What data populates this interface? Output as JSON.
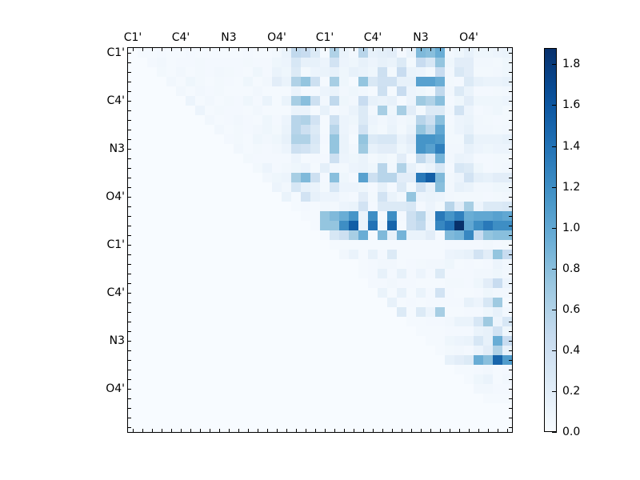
{
  "chart_data": {
    "type": "heatmap",
    "title": "",
    "xlabel": "",
    "ylabel": "",
    "grid_size": [
      40,
      40
    ],
    "x_tick_labels": [
      {
        "index": 0,
        "label": "C1'"
      },
      {
        "index": 5,
        "label": "C4'"
      },
      {
        "index": 10,
        "label": "N3"
      },
      {
        "index": 15,
        "label": "O4'"
      },
      {
        "index": 20,
        "label": "C1'"
      },
      {
        "index": 25,
        "label": "C4'"
      },
      {
        "index": 30,
        "label": "N3"
      },
      {
        "index": 35,
        "label": "O4'"
      }
    ],
    "y_tick_labels": [
      {
        "index": 0,
        "label": "C1'"
      },
      {
        "index": 5,
        "label": "C4'"
      },
      {
        "index": 10,
        "label": "N3"
      },
      {
        "index": 15,
        "label": "O4'"
      },
      {
        "index": 20,
        "label": "C1'"
      },
      {
        "index": 25,
        "label": "C4'"
      },
      {
        "index": 30,
        "label": "N3"
      },
      {
        "index": 35,
        "label": "O4'"
      }
    ],
    "x_axis_position": "top",
    "colormap": "Blues",
    "vmin": 0.0,
    "vmax": 1.88,
    "colorbar": {
      "ticks": [
        0.0,
        0.2,
        0.4,
        0.6,
        0.8,
        1.0,
        1.2,
        1.4,
        1.6,
        1.8
      ],
      "tick_labels": [
        "0.0",
        "0.2",
        "0.4",
        "0.6",
        "0.8",
        "1.0",
        "1.2",
        "1.4",
        "1.6",
        "1.8"
      ]
    },
    "background_value": 0.0,
    "note": "Upper-triangular matrix; values estimated from color. Cells not listed are ~0.",
    "rows": {
      "0": {
        "1": 0.03,
        "2": 0.03,
        "3": 0.04,
        "4": 0.03,
        "5": 0.03,
        "6": 0.04,
        "7": 0.03,
        "8": 0.03,
        "9": 0.03,
        "10": 0.03,
        "11": 0.03,
        "12": 0.04,
        "13": 0.03,
        "14": 0.03,
        "15": 0.05,
        "16": 0.12,
        "17": 0.5,
        "18": 0.45,
        "19": 0.25,
        "20": 0.03,
        "21": 0.6,
        "22": 0.12,
        "23": 0.06,
        "24": 0.55,
        "25": 0.15,
        "26": 0.18,
        "27": 0.2,
        "28": 0.04,
        "29": 0.12,
        "30": 0.85,
        "31": 0.8,
        "32": 0.95,
        "33": 0.06,
        "34": 0.08,
        "35": 0.15,
        "36": 0.08,
        "37": 0.08,
        "38": 0.1,
        "39": 0.12
      },
      "1": {
        "2": 0.04,
        "3": 0.06,
        "4": 0.03,
        "5": 0.04,
        "6": 0.04,
        "7": 0.05,
        "8": 0.04,
        "9": 0.04,
        "10": 0.04,
        "11": 0.04,
        "12": 0.05,
        "13": 0.04,
        "14": 0.04,
        "15": 0.08,
        "16": 0.1,
        "17": 0.3,
        "18": 0.15,
        "19": 0.15,
        "20": 0.1,
        "21": 0.35,
        "22": 0.1,
        "23": 0.08,
        "24": 0.15,
        "25": 0.1,
        "26": 0.15,
        "27": 0.12,
        "28": 0.25,
        "29": 0.05,
        "30": 0.45,
        "31": 0.3,
        "32": 0.75,
        "33": 0.08,
        "34": 0.2,
        "35": 0.2,
        "36": 0.06,
        "37": 0.06,
        "38": 0.05,
        "39": 0.08
      },
      "2": {
        "3": 0.05,
        "4": 0.03,
        "5": 0.06,
        "6": 0.03,
        "7": 0.05,
        "8": 0.04,
        "9": 0.06,
        "10": 0.05,
        "11": 0.04,
        "12": 0.03,
        "13": 0.08,
        "14": 0.04,
        "15": 0.12,
        "16": 0.08,
        "17": 0.25,
        "18": 0.05,
        "19": 0.1,
        "20": 0.12,
        "21": 0.15,
        "22": 0.08,
        "23": 0.15,
        "24": 0.12,
        "25": 0.08,
        "26": 0.4,
        "27": 0.05,
        "28": 0.45,
        "29": 0.12,
        "30": 0.1,
        "31": 0.05,
        "32": 0.45,
        "33": 0.06,
        "34": 0.28,
        "35": 0.2,
        "36": 0.05,
        "37": 0.05,
        "38": 0.06,
        "39": 0.08
      },
      "3": {
        "4": 0.06,
        "5": 0.03,
        "6": 0.08,
        "7": 0.05,
        "8": 0.03,
        "9": 0.05,
        "10": 0.04,
        "11": 0.03,
        "12": 0.08,
        "13": 0.03,
        "14": 0.06,
        "15": 0.2,
        "16": 0.12,
        "17": 0.6,
        "18": 0.75,
        "19": 0.4,
        "20": 0.03,
        "21": 0.65,
        "22": 0.08,
        "23": 0.03,
        "24": 0.75,
        "25": 0.28,
        "26": 0.38,
        "27": 0.38,
        "28": 0.15,
        "29": 0.15,
        "30": 1.05,
        "31": 1.05,
        "32": 0.95,
        "33": 0.05,
        "34": 0.04,
        "35": 0.25,
        "36": 0.15,
        "37": 0.12,
        "38": 0.12,
        "39": 0.15
      },
      "4": {
        "5": 0.06,
        "6": 0.03,
        "7": 0.06,
        "8": 0.04,
        "9": 0.05,
        "10": 0.03,
        "11": 0.03,
        "12": 0.03,
        "13": 0.06,
        "14": 0.03,
        "15": 0.03,
        "16": 0.03,
        "17": 0.12,
        "18": 0.04,
        "19": 0.04,
        "20": 0.1,
        "21": 0.12,
        "22": 0.06,
        "23": 0.08,
        "24": 0.06,
        "25": 0.03,
        "26": 0.4,
        "27": 0.03,
        "28": 0.45,
        "29": 0.1,
        "30": 0.08,
        "31": 0.05,
        "32": 0.5,
        "33": 0.06,
        "34": 0.25,
        "35": 0.12,
        "36": 0.04,
        "37": 0.04,
        "38": 0.05,
        "39": 0.06
      },
      "5": {
        "6": 0.1,
        "7": 0.03,
        "8": 0.06,
        "9": 0.03,
        "10": 0.05,
        "11": 0.04,
        "12": 0.08,
        "13": 0.04,
        "14": 0.12,
        "15": 0.03,
        "16": 0.12,
        "17": 0.65,
        "18": 0.8,
        "19": 0.4,
        "20": 0.06,
        "21": 0.5,
        "22": 0.08,
        "23": 0.06,
        "24": 0.45,
        "25": 0.15,
        "26": 0.12,
        "27": 0.15,
        "28": 0.03,
        "29": 0.1,
        "30": 0.7,
        "31": 0.6,
        "32": 0.8,
        "33": 0.04,
        "34": 0.08,
        "35": 0.2,
        "36": 0.08,
        "37": 0.08,
        "38": 0.08,
        "39": 0.1
      },
      "6": {
        "7": 0.1,
        "8": 0.03,
        "9": 0.05,
        "10": 0.04,
        "11": 0.04,
        "12": 0.03,
        "13": 0.06,
        "14": 0.03,
        "15": 0.03,
        "16": 0.03,
        "17": 0.12,
        "18": 0.12,
        "19": 0.03,
        "20": 0.15,
        "21": 0.04,
        "22": 0.06,
        "23": 0.12,
        "24": 0.25,
        "25": 0.06,
        "26": 0.65,
        "27": 0.08,
        "28": 0.65,
        "29": 0.2,
        "30": 0.05,
        "31": 0.25,
        "32": 0.25,
        "33": 0.06,
        "34": 0.35,
        "35": 0.1,
        "36": 0.04,
        "37": 0.06,
        "38": 0.08,
        "39": 0.05
      },
      "7": {
        "8": 0.06,
        "9": 0.03,
        "10": 0.04,
        "11": 0.06,
        "12": 0.04,
        "13": 0.03,
        "14": 0.08,
        "15": 0.04,
        "16": 0.1,
        "17": 0.55,
        "18": 0.6,
        "19": 0.35,
        "20": 0.03,
        "21": 0.4,
        "22": 0.1,
        "23": 0.08,
        "24": 0.25,
        "25": 0.1,
        "26": 0.06,
        "27": 0.1,
        "28": 0.06,
        "29": 0.08,
        "30": 0.55,
        "31": 0.4,
        "32": 0.8,
        "33": 0.04,
        "34": 0.1,
        "35": 0.12,
        "36": 0.06,
        "37": 0.05,
        "38": 0.04,
        "39": 0.05
      },
      "8": {
        "9": 0.06,
        "10": 0.03,
        "11": 0.05,
        "12": 0.04,
        "13": 0.06,
        "14": 0.08,
        "15": 0.05,
        "16": 0.12,
        "17": 0.55,
        "18": 0.4,
        "19": 0.25,
        "20": 0.03,
        "21": 0.55,
        "22": 0.1,
        "23": 0.06,
        "24": 0.35,
        "25": 0.08,
        "26": 0.05,
        "27": 0.12,
        "28": 0.05,
        "29": 0.12,
        "30": 0.75,
        "31": 0.55,
        "32": 1.0,
        "33": 0.05,
        "34": 0.1,
        "35": 0.15,
        "36": 0.06,
        "37": 0.06,
        "38": 0.05,
        "39": 0.06
      },
      "9": {
        "10": 0.04,
        "11": 0.05,
        "12": 0.03,
        "13": 0.08,
        "14": 0.06,
        "15": 0.08,
        "16": 0.15,
        "17": 0.6,
        "18": 0.6,
        "19": 0.3,
        "20": 0.04,
        "21": 0.75,
        "22": 0.12,
        "23": 0.03,
        "24": 0.75,
        "25": 0.25,
        "26": 0.3,
        "27": 0.3,
        "28": 0.12,
        "29": 0.2,
        "30": 1.15,
        "31": 1.15,
        "32": 1.1,
        "33": 0.05,
        "34": 0.05,
        "35": 0.25,
        "36": 0.12,
        "37": 0.12,
        "38": 0.12,
        "39": 0.15
      },
      "10": {
        "11": 0.06,
        "12": 0.03,
        "13": 0.05,
        "14": 0.04,
        "15": 0.06,
        "16": 0.1,
        "17": 0.4,
        "18": 0.35,
        "19": 0.25,
        "20": 0.03,
        "21": 0.75,
        "22": 0.12,
        "23": 0.06,
        "24": 0.7,
        "25": 0.15,
        "26": 0.2,
        "27": 0.2,
        "28": 0.08,
        "29": 0.15,
        "30": 1.15,
        "31": 1.05,
        "32": 1.3,
        "33": 0.06,
        "34": 0.06,
        "35": 0.15,
        "36": 0.1,
        "37": 0.08,
        "38": 0.1,
        "39": 0.1
      },
      "11": {
        "12": 0.05,
        "13": 0.04,
        "14": 0.04,
        "15": 0.04,
        "16": 0.04,
        "17": 0.1,
        "18": 0.03,
        "19": 0.04,
        "20": 0.04,
        "21": 0.4,
        "22": 0.1,
        "23": 0.08,
        "24": 0.12,
        "25": 0.05,
        "26": 0.08,
        "27": 0.05,
        "28": 0.2,
        "29": 0.03,
        "30": 0.5,
        "31": 0.25,
        "32": 0.9,
        "33": 0.06,
        "34": 0.12,
        "35": 0.1,
        "36": 0.04,
        "37": 0.04,
        "38": 0.05,
        "39": 0.05
      },
      "12": {
        "13": 0.05,
        "14": 0.1,
        "15": 0.04,
        "16": 0.06,
        "17": 0.08,
        "18": 0.1,
        "19": 0.03,
        "20": 0.18,
        "21": 0.06,
        "22": 0.05,
        "23": 0.1,
        "24": 0.12,
        "25": 0.08,
        "26": 0.55,
        "27": 0.06,
        "28": 0.6,
        "29": 0.15,
        "30": 0.06,
        "31": 0.12,
        "32": 0.3,
        "33": 0.04,
        "34": 0.3,
        "35": 0.25,
        "36": 0.08,
        "37": 0.04,
        "38": 0.05,
        "39": 0.06
      },
      "13": {
        "14": 0.06,
        "15": 0.08,
        "16": 0.1,
        "17": 0.65,
        "18": 0.85,
        "19": 0.4,
        "20": 0.04,
        "21": 0.8,
        "22": 0.08,
        "23": 0.04,
        "24": 1.05,
        "25": 0.4,
        "26": 0.55,
        "27": 0.55,
        "28": 0.2,
        "29": 0.2,
        "30": 1.35,
        "31": 1.55,
        "32": 0.85,
        "33": 0.06,
        "34": 0.1,
        "35": 0.35,
        "36": 0.18,
        "37": 0.15,
        "38": 0.2,
        "39": 0.2
      },
      "14": {
        "15": 0.1,
        "16": 0.06,
        "17": 0.3,
        "18": 0.15,
        "19": 0.12,
        "20": 0.05,
        "21": 0.3,
        "22": 0.1,
        "23": 0.1,
        "24": 0.08,
        "25": 0.04,
        "26": 0.15,
        "27": 0.04,
        "28": 0.25,
        "29": 0.05,
        "30": 0.35,
        "31": 0.15,
        "32": 0.8,
        "33": 0.06,
        "34": 0.15,
        "35": 0.12,
        "36": 0.06,
        "37": 0.06,
        "38": 0.08,
        "39": 0.08
      },
      "15": {
        "16": 0.12,
        "17": 0.03,
        "18": 0.35,
        "19": 0.15,
        "20": 0.1,
        "21": 0.1,
        "22": 0.06,
        "23": 0.04,
        "24": 0.2,
        "25": 0.05,
        "26": 0.35,
        "27": 0.12,
        "28": 0.06,
        "29": 0.75,
        "30": 0.1,
        "31": 0.12,
        "32": 0.1,
        "33": 0.06,
        "34": 0.05,
        "35": 0.05,
        "36": 0.05,
        "37": 0.04,
        "38": 0.05,
        "39": 0.06
      },
      "16": {
        "17": 0.03,
        "18": 0.04,
        "19": 0.03,
        "20": 0.06,
        "21": 0.05,
        "22": 0.1,
        "23": 0.12,
        "24": 0.35,
        "25": 0.04,
        "26": 0.25,
        "27": 0.25,
        "28": 0.25,
        "29": 0.3,
        "30": 0.04,
        "31": 0.1,
        "32": 0.05,
        "33": 0.55,
        "34": 0.2,
        "35": 0.65,
        "36": 0.1,
        "37": 0.25,
        "38": 0.25,
        "39": 0.28
      },
      "17": {
        "18": 0.03,
        "19": 0.03,
        "20": 0.75,
        "21": 0.85,
        "22": 0.95,
        "23": 1.15,
        "24": 0.12,
        "25": 1.2,
        "26": 0.03,
        "27": 1.2,
        "28": 0.04,
        "29": 0.4,
        "30": 0.55,
        "31": 0.12,
        "32": 1.35,
        "33": 1.15,
        "34": 1.3,
        "35": 0.95,
        "36": 1.0,
        "37": 1.0,
        "38": 1.05,
        "39": 1.0
      },
      "18": {
        "19": 0.03,
        "20": 0.75,
        "21": 0.75,
        "22": 1.2,
        "23": 1.55,
        "24": 0.12,
        "25": 1.4,
        "26": 0.06,
        "27": 1.5,
        "28": 0.03,
        "29": 0.4,
        "30": 0.5,
        "31": 0.1,
        "32": 1.25,
        "33": 1.4,
        "34": 1.88,
        "35": 1.0,
        "36": 1.2,
        "37": 1.35,
        "38": 1.2,
        "39": 1.2
      },
      "19": {
        "20": 0.03,
        "21": 0.3,
        "22": 0.4,
        "23": 0.65,
        "24": 0.95,
        "25": 0.03,
        "26": 0.85,
        "27": 0.15,
        "28": 0.9,
        "29": 0.12,
        "30": 0.12,
        "31": 0.2,
        "32": 0.04,
        "33": 0.85,
        "34": 0.9,
        "35": 1.25,
        "36": 0.45,
        "37": 0.75,
        "38": 0.8,
        "39": 0.8
      },
      "20": {
        "21": 0.03,
        "22": 0.03,
        "23": 0.03,
        "24": 0.03,
        "25": 0.03,
        "26": 0.03,
        "27": 0.03,
        "28": 0.03,
        "29": 0.03,
        "30": 0.03,
        "31": 0.03,
        "32": 0.03,
        "33": 0.04,
        "34": 0.04,
        "35": 0.04,
        "36": 0.04,
        "37": 0.06,
        "38": 0.04,
        "39": 0.05
      },
      "21": {
        "22": 0.06,
        "23": 0.12,
        "24": 0.03,
        "25": 0.15,
        "26": 0.04,
        "27": 0.25,
        "28": 0.03,
        "29": 0.03,
        "30": 0.03,
        "31": 0.03,
        "32": 0.03,
        "33": 0.1,
        "34": 0.12,
        "35": 0.15,
        "36": 0.35,
        "37": 0.2,
        "38": 0.75,
        "39": 0.45
      },
      "22": {
        "24": 0.03,
        "25": 0.04,
        "26": 0.06,
        "27": 0.06,
        "28": 0.03,
        "29": 0.04,
        "30": 0.05,
        "31": 0.06,
        "32": 0.06,
        "33": 0.08,
        "34": 0.03,
        "35": 0.04,
        "36": 0.03,
        "37": 0.04,
        "38": 0.1,
        "39": 0.06
      },
      "23": {
        "24": 0.03,
        "25": 0.04,
        "26": 0.15,
        "27": 0.04,
        "28": 0.15,
        "29": 0.04,
        "30": 0.1,
        "31": 0.04,
        "32": 0.25,
        "33": 0.04,
        "34": 0.04,
        "35": 0.04,
        "36": 0.06,
        "37": 0.06,
        "38": 0.08,
        "39": 0.06
      },
      "24": {
        "25": 0.04,
        "26": 0.04,
        "27": 0.06,
        "28": 0.04,
        "29": 0.04,
        "30": 0.03,
        "31": 0.03,
        "32": 0.03,
        "33": 0.05,
        "34": 0.05,
        "35": 0.04,
        "36": 0.08,
        "37": 0.2,
        "38": 0.45,
        "39": 0.1
      },
      "25": {
        "26": 0.12,
        "27": 0.03,
        "28": 0.15,
        "29": 0.03,
        "30": 0.12,
        "31": 0.04,
        "32": 0.35,
        "33": 0.04,
        "34": 0.03,
        "35": 0.03,
        "36": 0.04,
        "37": 0.08,
        "38": 0.06,
        "39": 0.06
      },
      "26": {
        "27": 0.15,
        "28": 0.03,
        "29": 0.04,
        "30": 0.03,
        "31": 0.04,
        "32": 0.04,
        "33": 0.04,
        "34": 0.04,
        "35": 0.15,
        "36": 0.1,
        "37": 0.3,
        "38": 0.7,
        "39": 0.03
      },
      "27": {
        "28": 0.25,
        "29": 0.03,
        "30": 0.25,
        "31": 0.1,
        "32": 0.65,
        "33": 0.03,
        "34": 0.03,
        "35": 0.04,
        "36": 0.04,
        "37": 0.08,
        "38": 0.15,
        "39": 0.06
      },
      "28": {
        "29": 0.03,
        "30": 0.03,
        "31": 0.04,
        "32": 0.04,
        "33": 0.06,
        "34": 0.12,
        "35": 0.12,
        "36": 0.3,
        "37": 0.7,
        "38": 0.1,
        "39": 0.3
      },
      "29": {
        "30": 0.03,
        "31": 0.03,
        "32": 0.03,
        "33": 0.04,
        "34": 0.04,
        "35": 0.04,
        "36": 0.12,
        "37": 0.15,
        "38": 0.35,
        "39": 0.08
      },
      "30": {
        "31": 0.03,
        "32": 0.03,
        "33": 0.08,
        "34": 0.1,
        "35": 0.12,
        "36": 0.3,
        "37": 0.15,
        "38": 0.95,
        "39": 0.45
      },
      "31": {
        "32": 0.03,
        "33": 0.05,
        "34": 0.06,
        "35": 0.04,
        "36": 0.1,
        "37": 0.2,
        "38": 0.6,
        "39": 0.15
      },
      "32": {
        "33": 0.15,
        "34": 0.2,
        "35": 0.25,
        "36": 0.95,
        "37": 0.8,
        "38": 1.5,
        "39": 1.1
      },
      "33": {
        "34": 0.03,
        "35": 0.03,
        "36": 0.04,
        "37": 0.06,
        "38": 0.03,
        "39": 0.04
      },
      "34": {
        "35": 0.03,
        "36": 0.08,
        "37": 0.12,
        "38": 0.03,
        "39": 0.06
      },
      "35": {
        "36": 0.06,
        "37": 0.06,
        "38": 0.04,
        "39": 0.04
      },
      "36": {
        "37": 0.03,
        "38": 0.03,
        "39": 0.03
      }
    }
  }
}
